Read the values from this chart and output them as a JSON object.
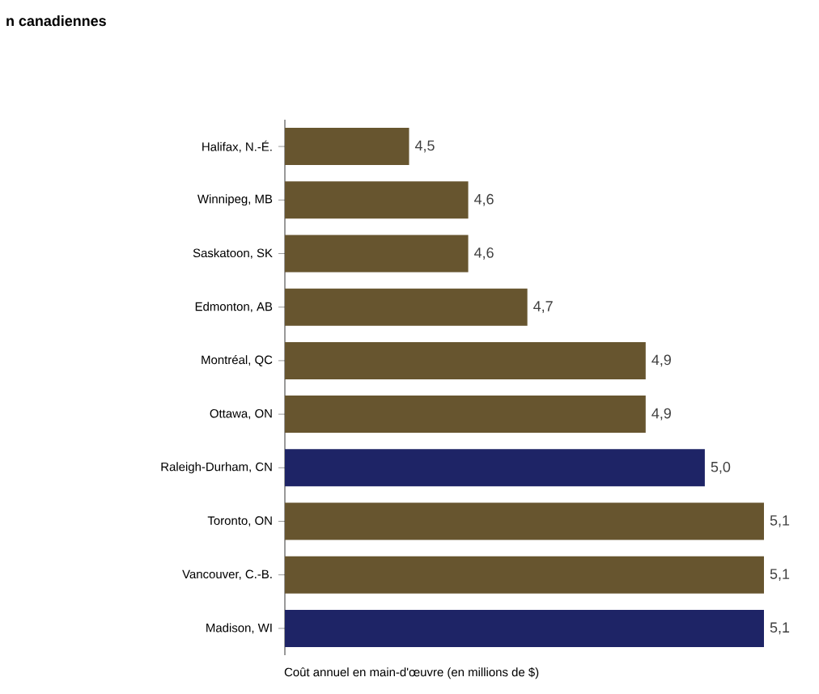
{
  "chart_data": {
    "type": "bar",
    "orientation": "horizontal",
    "title": "n canadiennes",
    "xlabel": "Coût annuel en main-d'œuvre (en millions de $)",
    "categories": [
      "Halifax, N.-É.",
      "Winnipeg, MB",
      "Saskatoon, SK",
      "Edmonton, AB",
      "Montréal, QC",
      "Ottawa, ON",
      "Raleigh-Durham, CN",
      "Toronto, ON",
      "Vancouver, C.-B.",
      "Madison, WI"
    ],
    "values": [
      4.5,
      4.6,
      4.6,
      4.7,
      4.9,
      4.9,
      5.0,
      5.1,
      5.1,
      5.1
    ],
    "value_labels": [
      "4,5",
      "4,6",
      "4,6",
      "4,7",
      "4,9",
      "4,9",
      "5,0",
      "5,1",
      "5,1",
      "5,1"
    ],
    "colors": [
      "#67552f",
      "#67552f",
      "#67552f",
      "#67552f",
      "#67552f",
      "#67552f",
      "#1e2466",
      "#67552f",
      "#67552f",
      "#1e2466"
    ],
    "xlim": [
      4.29,
      5.1
    ],
    "tick_labels": "y"
  }
}
